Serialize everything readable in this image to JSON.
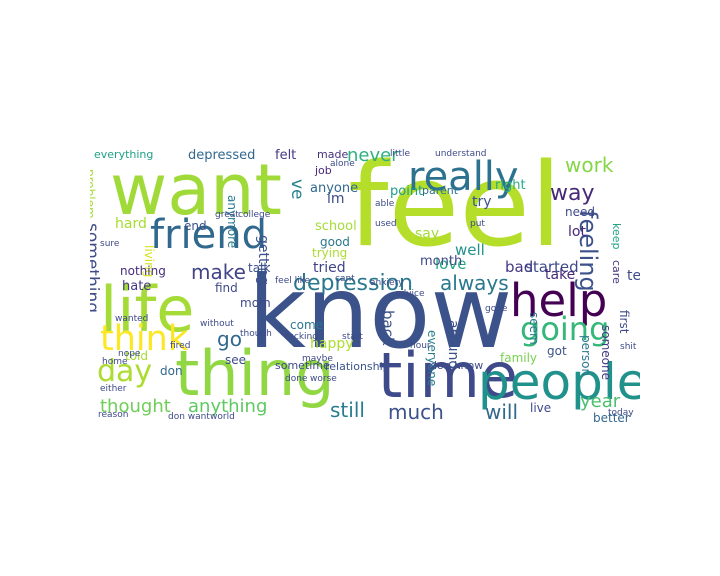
{
  "words": [
    {
      "text": "feel",
      "color": "#b5de2b"
    },
    {
      "text": "know",
      "color": "#3b528b"
    },
    {
      "text": "want",
      "color": "#a0da39"
    },
    {
      "text": "thing",
      "color": "#90d743"
    },
    {
      "text": "time",
      "color": "#3e4a89"
    },
    {
      "text": "people",
      "color": "#21918c"
    },
    {
      "text": "life",
      "color": "#a5db36"
    },
    {
      "text": "help",
      "color": "#440154"
    },
    {
      "text": "friend",
      "color": "#31688e"
    },
    {
      "text": "really",
      "color": "#2c728e"
    },
    {
      "text": "think",
      "color": "#fde725"
    },
    {
      "text": "going",
      "color": "#35b779"
    },
    {
      "text": "depression",
      "color": "#2a788e"
    },
    {
      "text": "day",
      "color": "#addc30"
    },
    {
      "text": "thought",
      "color": "#6ece58"
    },
    {
      "text": "anything",
      "color": "#5ec962"
    },
    {
      "text": "always",
      "color": "#2a788e"
    },
    {
      "text": "feeling",
      "color": "#3b528b"
    },
    {
      "text": "work",
      "color": "#86d549"
    },
    {
      "text": "way",
      "color": "#482878"
    },
    {
      "text": "year",
      "color": "#4ac16d"
    },
    {
      "text": "still",
      "color": "#287c8e"
    },
    {
      "text": "much",
      "color": "#3b528b"
    },
    {
      "text": "will",
      "color": "#31688e"
    },
    {
      "text": "make",
      "color": "#414487"
    },
    {
      "text": "go",
      "color": "#31688e"
    },
    {
      "text": "never",
      "color": "#2db27d"
    },
    {
      "text": "something",
      "color": "#3e4a89"
    },
    {
      "text": "ve",
      "color": "#26828e"
    },
    {
      "text": "everything",
      "color": "#1fa188"
    },
    {
      "text": "depressed",
      "color": "#31688e"
    },
    {
      "text": "felt",
      "color": "#443983"
    },
    {
      "text": "made",
      "color": "#46327e"
    },
    {
      "text": "job",
      "color": "#482878"
    },
    {
      "text": "im",
      "color": "#3e4a89"
    },
    {
      "text": "anyone",
      "color": "#31688e"
    },
    {
      "text": "right",
      "color": "#27ad81"
    },
    {
      "text": "try",
      "color": "#3b528b"
    },
    {
      "text": "point",
      "color": "#1f9e89"
    },
    {
      "text": "parent",
      "color": "#2c728e"
    },
    {
      "text": "need",
      "color": "#3e4a89"
    },
    {
      "text": "lot",
      "color": "#482878"
    },
    {
      "text": "keep",
      "color": "#20a486"
    },
    {
      "text": "care",
      "color": "#46327e"
    },
    {
      "text": "hard",
      "color": "#a8db34"
    },
    {
      "text": "end",
      "color": "#3b528b"
    },
    {
      "text": "living",
      "color": "#d5e21a"
    },
    {
      "text": "getting",
      "color": "#3b528b"
    },
    {
      "text": "anymore",
      "color": "#2a788e"
    },
    {
      "text": "school",
      "color": "#a5db36"
    },
    {
      "text": "say",
      "color": "#a5db36"
    },
    {
      "text": "good",
      "color": "#2a788e"
    },
    {
      "text": "well",
      "color": "#21918c"
    },
    {
      "text": "love",
      "color": "#22a884"
    },
    {
      "text": "bad",
      "color": "#443983"
    },
    {
      "text": "started",
      "color": "#3e4a89"
    },
    {
      "text": "month",
      "color": "#3e4a89"
    },
    {
      "text": "tried",
      "color": "#414487"
    },
    {
      "text": "trying",
      "color": "#addc30"
    },
    {
      "text": "nothing",
      "color": "#472d7b"
    },
    {
      "text": "hate",
      "color": "#443983"
    },
    {
      "text": "talk",
      "color": "#3b528b"
    },
    {
      "text": "find",
      "color": "#3e4a89"
    },
    {
      "text": "take",
      "color": "#482878"
    },
    {
      "text": "tell",
      "color": "#3e4a89"
    },
    {
      "text": "mom",
      "color": "#3e4a89"
    },
    {
      "text": "come",
      "color": "#2a788e"
    },
    {
      "text": "happy",
      "color": "#addc30"
    },
    {
      "text": "told",
      "color": "#a8db34"
    },
    {
      "text": "see",
      "color": "#3e4a89"
    },
    {
      "text": "don",
      "color": "#31688e"
    },
    {
      "text": "back",
      "color": "#3b528b"
    },
    {
      "text": "around",
      "color": "#3b528b"
    },
    {
      "text": "everyone",
      "color": "#287c8e"
    },
    {
      "text": "seem",
      "color": "#2a788e"
    },
    {
      "text": "person",
      "color": "#2a788e"
    },
    {
      "text": "someone",
      "color": "#443983"
    },
    {
      "text": "first",
      "color": "#3e4a89"
    },
    {
      "text": "family",
      "color": "#7ad151"
    },
    {
      "text": "got",
      "color": "#3b528b"
    },
    {
      "text": "live",
      "color": "#3e4a89"
    },
    {
      "text": "better",
      "color": "#31688e"
    },
    {
      "text": "problem",
      "color": "#a5db36"
    },
    {
      "text": "sometime",
      "color": "#3e4a89"
    },
    {
      "text": "relationship",
      "color": "#3b528b"
    },
    {
      "text": "don know",
      "color": "#3e4a89"
    },
    {
      "text": "alone",
      "color": "#3e4a89"
    },
    {
      "text": "little",
      "color": "#3e4a89"
    },
    {
      "text": "understand",
      "color": "#3e4a89"
    },
    {
      "text": "able",
      "color": "#3e4a89"
    },
    {
      "text": "used",
      "color": "#3e4a89"
    },
    {
      "text": "put",
      "color": "#3e4a89"
    },
    {
      "text": "hour",
      "color": "#3e4a89"
    },
    {
      "text": "start",
      "color": "#3e4a89"
    },
    {
      "text": "fucking",
      "color": "#3e4a89"
    },
    {
      "text": "fired",
      "color": "#3e4a89"
    },
    {
      "text": "worse",
      "color": "#3e4a89"
    },
    {
      "text": "without",
      "color": "#3e4a89"
    },
    {
      "text": "though",
      "color": "#3e4a89"
    },
    {
      "text": "done",
      "color": "#3e4a89"
    },
    {
      "text": "sure",
      "color": "#3e4a89"
    },
    {
      "text": "college",
      "color": "#3e4a89"
    },
    {
      "text": "great",
      "color": "#3e4a89"
    },
    {
      "text": "wanted",
      "color": "#3e4a89"
    },
    {
      "text": "home",
      "color": "#3e4a89"
    },
    {
      "text": "shit",
      "color": "#3e4a89"
    },
    {
      "text": "today",
      "color": "#3e4a89"
    },
    {
      "text": "reason",
      "color": "#3e4a89"
    },
    {
      "text": "don want",
      "color": "#3e4a89"
    },
    {
      "text": "world",
      "color": "#3e4a89"
    },
    {
      "text": "maybe",
      "color": "#3e4a89"
    },
    {
      "text": "nope",
      "color": "#3e4a89"
    },
    {
      "text": "anxiety",
      "color": "#3e4a89"
    },
    {
      "text": "advice",
      "color": "#3e4a89"
    },
    {
      "text": "feel like",
      "color": "#3e4a89"
    },
    {
      "text": "cant",
      "color": "#3e4a89"
    },
    {
      "text": "gone",
      "color": "#3e4a89"
    },
    {
      "text": "either",
      "color": "#3e4a89"
    }
  ]
}
